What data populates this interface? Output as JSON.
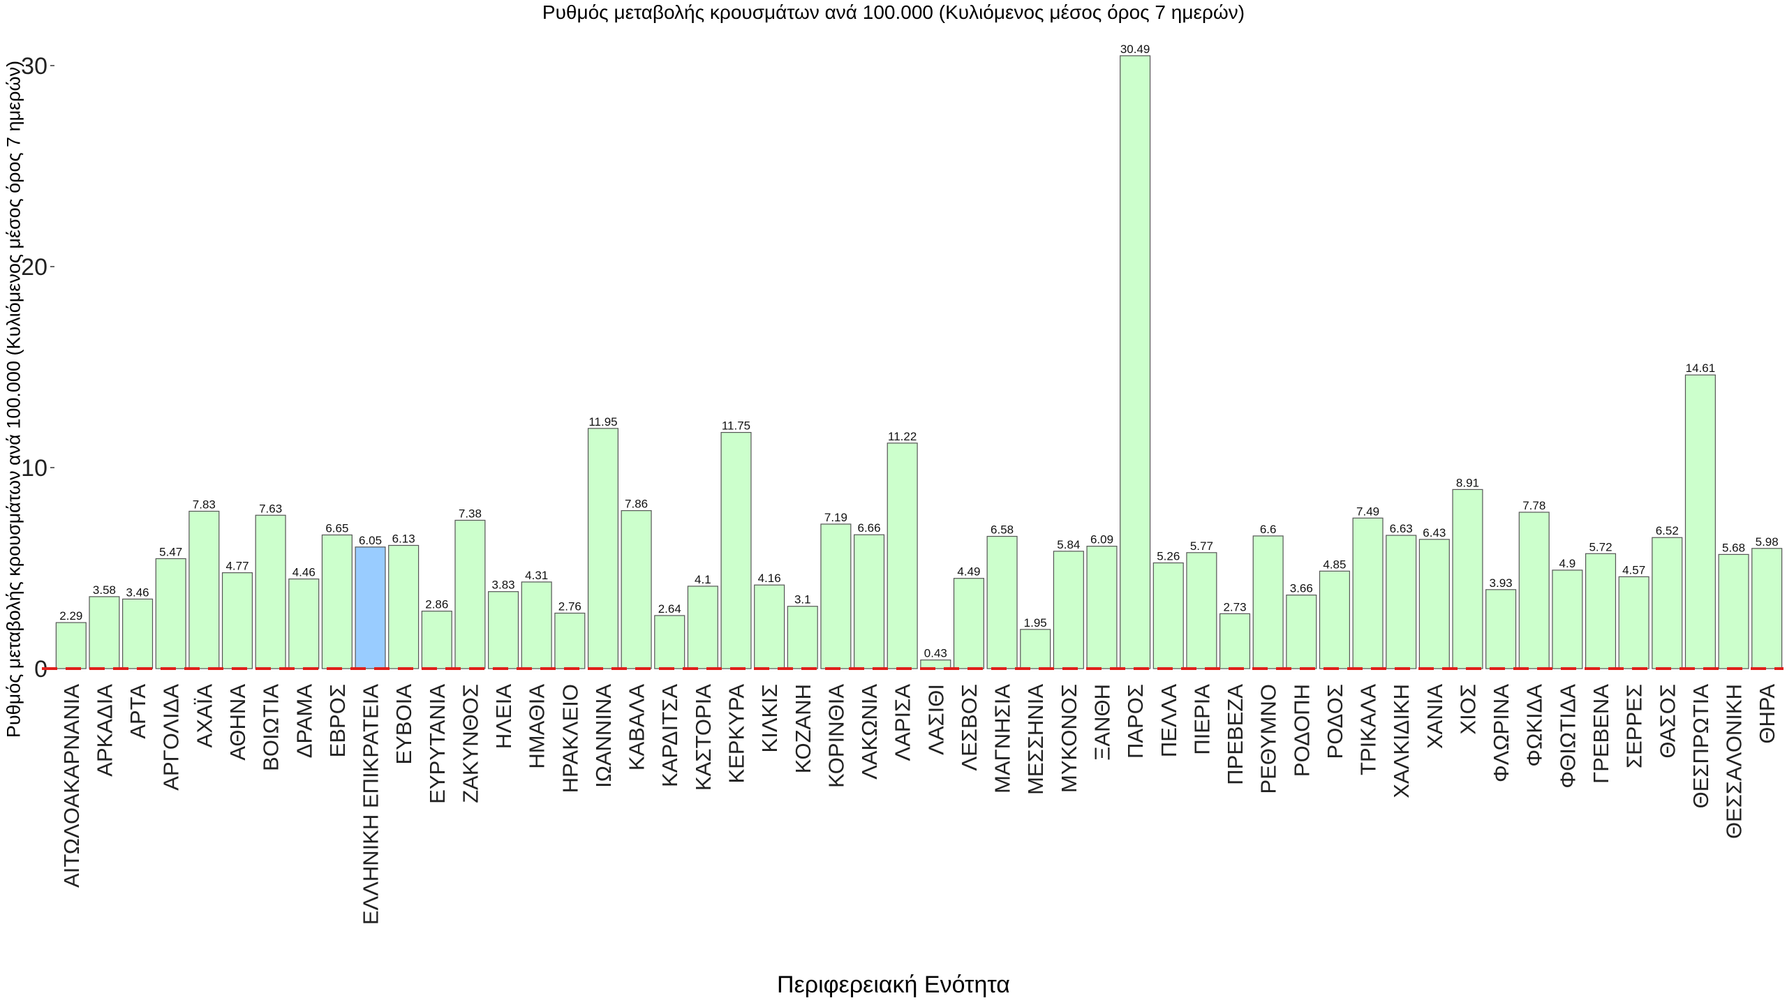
{
  "chart_data": {
    "type": "bar",
    "title": "Ρυθμός μεταβολής κρουσμάτων ανά 100.000 (Κυλιόμενος μέσος όρος 7 ημερών)",
    "xlabel": "Περιφερειακή Ενότητα",
    "ylabel": "Ρυθμός μεταβολής κρουσμάτων ανά 100.000 (Κυλιόμενος μέσος όρος 7 ημερών)",
    "ylim": [
      0,
      32.5
    ],
    "yticks": [
      0,
      10,
      20,
      30
    ],
    "grid": false,
    "reference_line": {
      "y": 0,
      "color": "#e0201b",
      "style": "dashed"
    },
    "bar_color": "#ccffcc",
    "highlight_color": "#99ccff",
    "highlight_category": "ΕΛΛΗΝΙΚΗ ΕΠΙΚΡΑΤΕΙΑ",
    "bar_edge_color": "#555555",
    "categories": [
      "ΑΙΤΩΛΟΑΚΑΡΝΑΝΙΑ",
      "ΑΡΚΑΔΙΑ",
      "ΑΡΤΑ",
      "ΑΡΓΟΛΙΔΑ",
      "ΑΧΑΪΑ",
      "ΑΘΗΝΑ",
      "ΒΟΙΩΤΙΑ",
      "ΔΡΑΜΑ",
      "ΕΒΡΟΣ",
      "ΕΛΛΗΝΙΚΗ ΕΠΙΚΡΑΤΕΙΑ",
      "ΕΥΒΟΙΑ",
      "ΕΥΡΥΤΑΝΙΑ",
      "ΖΑΚΥΝΘΟΣ",
      "ΗΛΕΙΑ",
      "ΗΜΑΘΙΑ",
      "ΗΡΑΚΛΕΙΟ",
      "ΙΩΑΝΝΙΝΑ",
      "ΚΑΒΑΛΑ",
      "ΚΑΡΔΙΤΣΑ",
      "ΚΑΣΤΟΡΙΑ",
      "ΚΕΡΚΥΡΑ",
      "ΚΙΛΚΙΣ",
      "ΚΟΖΑΝΗ",
      "ΚΟΡΙΝΘΙΑ",
      "ΛΑΚΩΝΙΑ",
      "ΛΑΡΙΣΑ",
      "ΛΑΣΙΘΙ",
      "ΛΕΣΒΟΣ",
      "ΜΑΓΝΗΣΙΑ",
      "ΜΕΣΣΗΝΙΑ",
      "ΜΥΚΟΝΟΣ",
      "ΞΑΝΘΗ",
      "ΠΑΡΟΣ",
      "ΠΕΛΛΑ",
      "ΠΙΕΡΙΑ",
      "ΠΡΕΒΕΖΑ",
      "ΡΕΘΥΜΝΟ",
      "ΡΟΔΟΠΗ",
      "ΡΟΔΟΣ",
      "ΤΡΙΚΑΛΑ",
      "ΧΑΛΚΙΔΙΚΗ",
      "ΧΑΝΙΑ",
      "ΧΙΟΣ",
      "ΦΛΩΡΙΝΑ",
      "ΦΩΚΙΔΑ",
      "ΦΘΙΩΤΙΔΑ",
      "ΓΡΕΒΕΝΑ",
      "ΣΕΡΡΕΣ",
      "ΘΑΣΟΣ",
      "ΘΕΣΠΡΩΤΙΑ",
      "ΘΕΣΣΑΛΟΝΙΚΗ",
      "ΘΗΡΑ"
    ],
    "values": [
      2.29,
      3.58,
      3.46,
      5.47,
      7.83,
      4.77,
      7.63,
      4.46,
      6.65,
      6.05,
      6.13,
      2.86,
      7.38,
      3.83,
      4.31,
      2.76,
      11.95,
      7.86,
      2.64,
      4.1,
      11.75,
      4.16,
      3.1,
      7.19,
      6.66,
      11.22,
      0.43,
      4.49,
      6.58,
      1.95,
      5.84,
      6.09,
      30.49,
      5.26,
      5.77,
      2.73,
      6.6,
      3.66,
      4.85,
      7.49,
      6.63,
      6.43,
      8.91,
      3.93,
      7.78,
      4.9,
      5.72,
      4.57,
      6.52,
      14.61,
      5.68,
      5.98
    ],
    "value_labels": [
      "2.29",
      "3.58",
      "3.46",
      "5.47",
      "7.83",
      "4.77",
      "7.63",
      "4.46",
      "6.65",
      "6.05",
      "6.13",
      "2.86",
      "7.38",
      "3.83",
      "4.31",
      "2.76",
      "11.95",
      "7.86",
      "2.64",
      "4.1",
      "11.75",
      "4.16",
      "3.1",
      "7.19",
      "6.66",
      "11.22",
      "0.43",
      "4.49",
      "6.58",
      "1.95",
      "5.84",
      "6.09",
      "30.49",
      "5.26",
      "5.77",
      "2.73",
      "6.6",
      "3.66",
      "4.85",
      "7.49",
      "6.63",
      "6.43",
      "8.91",
      "3.93",
      "7.78",
      "4.9",
      "5.72",
      "4.57",
      "6.52",
      "14.61",
      "5.68",
      "5.98"
    ]
  }
}
